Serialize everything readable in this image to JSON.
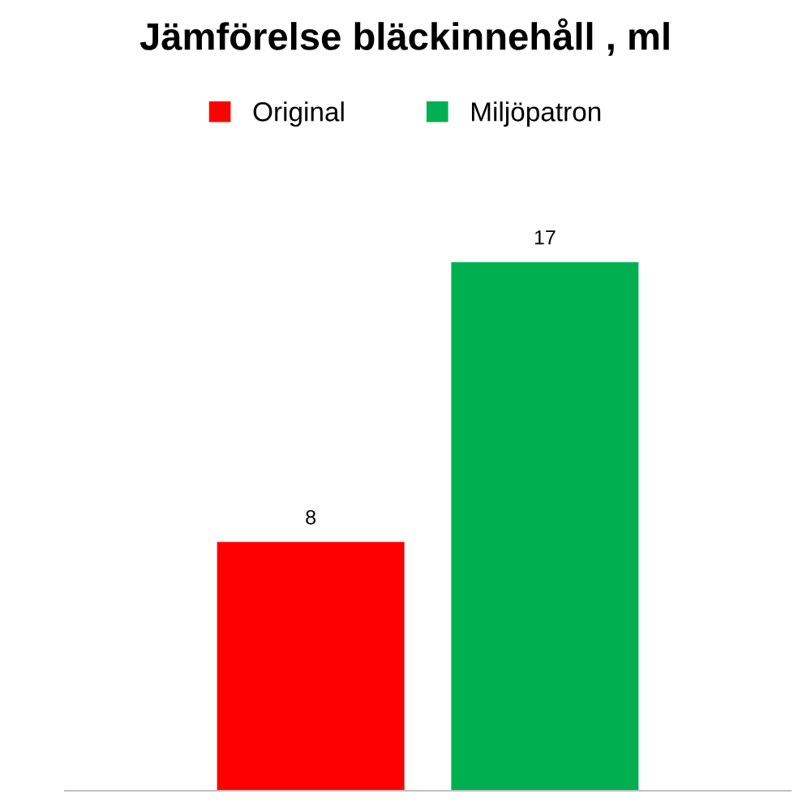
{
  "chart_data": {
    "type": "bar",
    "title": "Jämförelse bläckinnehåll , ml",
    "categories": [
      null
    ],
    "series": [
      {
        "name": "Original",
        "color": "#ff0000",
        "values": [
          8
        ]
      },
      {
        "name": "Miljöpatron",
        "color": "#00b050",
        "values": [
          17
        ]
      }
    ],
    "data_labels": true,
    "legend": "top",
    "grid": false
  }
}
